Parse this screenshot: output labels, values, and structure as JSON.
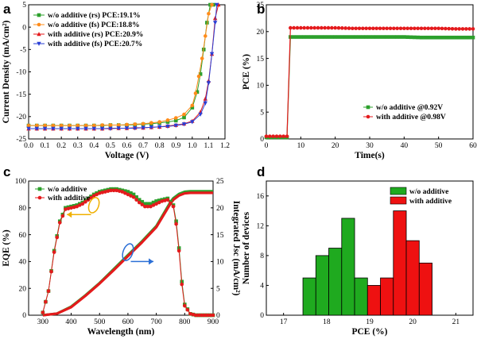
{
  "chart_data": [
    {
      "panel": "a",
      "type": "line",
      "xlabel": "Voltage (V)",
      "ylabel": "Current Density (mA/cm²)",
      "xlim": [
        0.0,
        1.2
      ],
      "ylim": [
        -25,
        5
      ],
      "xticks": [
        0.0,
        0.1,
        0.2,
        0.3,
        0.4,
        0.5,
        0.6,
        0.7,
        0.8,
        0.9,
        1.0,
        1.1,
        1.2
      ],
      "yticks": [
        5,
        0,
        -5,
        -10,
        -15,
        -20,
        -25
      ],
      "legend": "top-left",
      "series": [
        {
          "name": "w/o additive (rs) PCE:19.1%",
          "color": "#2ca02c",
          "marker": "square",
          "x": [
            0.0,
            0.05,
            0.1,
            0.15,
            0.2,
            0.25,
            0.3,
            0.35,
            0.4,
            0.45,
            0.5,
            0.55,
            0.6,
            0.65,
            0.7,
            0.75,
            0.8,
            0.85,
            0.9,
            0.95,
            1.0,
            1.03,
            1.05,
            1.07,
            1.09,
            1.11,
            1.13
          ],
          "y": [
            -22.0,
            -22.0,
            -22.0,
            -22.0,
            -22.0,
            -22.0,
            -22.0,
            -22.0,
            -22.0,
            -22.0,
            -21.9,
            -21.9,
            -21.9,
            -21.8,
            -21.7,
            -21.6,
            -21.4,
            -21.2,
            -20.9,
            -20.2,
            -18.0,
            -14.5,
            -10.5,
            -5.0,
            1.0,
            5.0,
            5.0
          ]
        },
        {
          "name": "w/o additive (fs) PCE:18.8%",
          "color": "#ff8c1a",
          "marker": "circle",
          "x": [
            0.0,
            0.05,
            0.1,
            0.15,
            0.2,
            0.25,
            0.3,
            0.35,
            0.4,
            0.45,
            0.5,
            0.55,
            0.6,
            0.65,
            0.7,
            0.75,
            0.8,
            0.85,
            0.9,
            0.95,
            1.0,
            1.02,
            1.04,
            1.06,
            1.08,
            1.1,
            1.12
          ],
          "y": [
            -22.0,
            -22.0,
            -22.0,
            -22.0,
            -22.0,
            -22.0,
            -22.0,
            -22.0,
            -22.0,
            -21.9,
            -21.9,
            -21.9,
            -21.8,
            -21.7,
            -21.6,
            -21.4,
            -21.2,
            -20.8,
            -20.3,
            -19.5,
            -17.5,
            -14.8,
            -11.0,
            -7.0,
            -2.0,
            3.0,
            5.0
          ]
        },
        {
          "name": "with additive (rs) PCE:20.9%",
          "color": "#e41a1c",
          "marker": "triangle-up",
          "x": [
            0.0,
            0.05,
            0.1,
            0.15,
            0.2,
            0.25,
            0.3,
            0.35,
            0.4,
            0.45,
            0.5,
            0.55,
            0.6,
            0.65,
            0.7,
            0.75,
            0.8,
            0.85,
            0.9,
            0.95,
            1.0,
            1.05,
            1.08,
            1.1,
            1.12,
            1.14,
            1.16
          ],
          "y": [
            -22.7,
            -22.7,
            -22.7,
            -22.7,
            -22.7,
            -22.7,
            -22.7,
            -22.7,
            -22.7,
            -22.7,
            -22.6,
            -22.6,
            -22.6,
            -22.5,
            -22.5,
            -22.4,
            -22.3,
            -22.1,
            -21.9,
            -21.6,
            -21.0,
            -19.0,
            -16.0,
            -12.0,
            -6.0,
            2.0,
            5.0
          ]
        },
        {
          "name": "with additive (fs) PCE:20.7%",
          "color": "#2a3fd6",
          "marker": "triangle-down",
          "x": [
            0.0,
            0.05,
            0.1,
            0.15,
            0.2,
            0.25,
            0.3,
            0.35,
            0.4,
            0.45,
            0.5,
            0.55,
            0.6,
            0.65,
            0.7,
            0.75,
            0.8,
            0.85,
            0.9,
            0.95,
            1.0,
            1.05,
            1.08,
            1.1,
            1.12,
            1.14,
            1.15
          ],
          "y": [
            -22.7,
            -22.7,
            -22.7,
            -22.7,
            -22.7,
            -22.7,
            -22.7,
            -22.7,
            -22.7,
            -22.7,
            -22.7,
            -22.6,
            -22.6,
            -22.6,
            -22.5,
            -22.4,
            -22.3,
            -22.2,
            -22.0,
            -21.7,
            -21.2,
            -19.5,
            -17.0,
            -12.5,
            -6.0,
            1.0,
            5.0
          ]
        }
      ]
    },
    {
      "panel": "b",
      "type": "line",
      "xlabel": "Time(s)",
      "ylabel": "PCE (%)",
      "xlim": [
        0,
        60
      ],
      "ylim": [
        0,
        25
      ],
      "xticks": [
        0,
        10,
        20,
        30,
        40,
        50,
        60
      ],
      "yticks": [
        0,
        5,
        10,
        15,
        20,
        25
      ],
      "legend": "bottom-right",
      "series": [
        {
          "name": "w/o additive @0.92V",
          "color": "#2ca02c",
          "marker": "square",
          "x": [
            0,
            1,
            2,
            3,
            4,
            5,
            6,
            7,
            8,
            10,
            15,
            20,
            25,
            30,
            35,
            40,
            45,
            50,
            55,
            60
          ],
          "y": [
            0.3,
            0.3,
            0.3,
            0.3,
            0.3,
            0.3,
            0.3,
            19.0,
            19.0,
            19.0,
            19.0,
            19.0,
            19.0,
            19.0,
            19.0,
            19.0,
            18.9,
            18.9,
            18.9,
            18.9
          ]
        },
        {
          "name": "with additive @0.98V",
          "color": "#e41a1c",
          "marker": "circle",
          "x": [
            0,
            1,
            2,
            3,
            4,
            5,
            6,
            7,
            8,
            10,
            15,
            20,
            25,
            30,
            35,
            40,
            45,
            50,
            55,
            60
          ],
          "y": [
            0.5,
            0.5,
            0.5,
            0.5,
            0.5,
            0.5,
            0.5,
            20.7,
            20.7,
            20.7,
            20.7,
            20.7,
            20.6,
            20.6,
            20.6,
            20.6,
            20.6,
            20.6,
            20.5,
            20.5
          ]
        }
      ]
    },
    {
      "panel": "c",
      "type": "line",
      "xlabel": "Wavelength (nm)",
      "ylabel": "EQE (%)",
      "y2label": "Integrated Jsc (mA/cm²)",
      "xlim": [
        250,
        900
      ],
      "ylim": [
        0,
        100
      ],
      "y2lim": [
        0,
        25
      ],
      "xticks": [
        300,
        400,
        500,
        600,
        700,
        800,
        900
      ],
      "yticks": [
        0,
        20,
        40,
        60,
        80,
        100
      ],
      "y2ticks": [
        0,
        5,
        10,
        15,
        20,
        25
      ],
      "legend": "top-left",
      "series": [
        {
          "name": "w/o additive",
          "color": "#2ca02c",
          "marker": "square",
          "axis": "left",
          "x": [
            300,
            320,
            340,
            360,
            380,
            400,
            420,
            440,
            460,
            480,
            500,
            520,
            540,
            560,
            580,
            600,
            620,
            640,
            660,
            680,
            700,
            720,
            740,
            760,
            770,
            780,
            790,
            800,
            820,
            840,
            860,
            880,
            900
          ],
          "y": [
            2,
            18,
            48,
            70,
            80,
            81,
            82,
            84,
            87,
            90,
            92,
            93,
            94,
            94,
            93,
            92,
            90,
            86,
            83,
            83,
            85,
            86,
            87,
            82,
            70,
            50,
            25,
            8,
            1,
            0,
            0,
            0,
            0
          ]
        },
        {
          "name": "with additive",
          "color": "#e41a1c",
          "marker": "circle",
          "axis": "left",
          "x": [
            300,
            320,
            340,
            360,
            380,
            400,
            420,
            440,
            460,
            480,
            500,
            520,
            540,
            560,
            580,
            600,
            620,
            640,
            660,
            680,
            700,
            720,
            740,
            760,
            770,
            780,
            790,
            800,
            820,
            840,
            860,
            880,
            900
          ],
          "y": [
            2,
            18,
            47,
            69,
            79,
            80,
            81,
            83,
            86,
            89,
            91,
            92,
            93,
            93,
            92,
            90,
            88,
            84,
            81,
            81,
            83,
            85,
            86,
            81,
            68,
            48,
            23,
            7,
            1,
            0,
            0,
            0,
            0
          ]
        },
        {
          "name": "Integrated Jsc (w/o additive)",
          "color": "#2ca02c",
          "axis": "right",
          "x": [
            300,
            350,
            400,
            450,
            500,
            550,
            600,
            650,
            700,
            750,
            760,
            780,
            800,
            820,
            850,
            900
          ],
          "y": [
            0,
            0.3,
            1.6,
            3.7,
            6.0,
            8.6,
            11.2,
            13.8,
            16.6,
            21.1,
            21.8,
            22.6,
            23.0,
            23.1,
            23.1,
            23.1
          ]
        },
        {
          "name": "Integrated Jsc (with additive)",
          "color": "#e41a1c",
          "axis": "right",
          "x": [
            300,
            350,
            400,
            450,
            500,
            550,
            600,
            650,
            700,
            750,
            760,
            780,
            800,
            820,
            850,
            900
          ],
          "y": [
            0,
            0.3,
            1.5,
            3.6,
            5.9,
            8.4,
            11.0,
            13.6,
            16.4,
            20.8,
            21.5,
            22.3,
            22.7,
            22.8,
            22.8,
            22.8
          ]
        }
      ]
    },
    {
      "panel": "d",
      "type": "bar",
      "xlabel": "PCE (%)",
      "ylabel": "Number of devices",
      "xlim": [
        16.6,
        21.4
      ],
      "ylim": [
        0,
        18
      ],
      "xticks": [
        17,
        18,
        19,
        20,
        21
      ],
      "yticks": [
        0,
        4,
        8,
        12,
        16
      ],
      "legend": "top-right",
      "bin_width": 0.3,
      "series": [
        {
          "name": "w/o additive",
          "color": "#1faa1f",
          "x": [
            17.6,
            17.9,
            18.2,
            18.5,
            18.8
          ],
          "values": [
            5,
            8,
            9,
            13,
            5
          ]
        },
        {
          "name": "with additive",
          "color": "#ee1111",
          "x": [
            19.1,
            19.4,
            19.7,
            20.0,
            20.3,
            20.6
          ],
          "values": [
            4,
            5,
            14,
            10,
            7,
            0
          ]
        }
      ]
    }
  ],
  "panels": {
    "a": {
      "letter": "a"
    },
    "b": {
      "letter": "b"
    },
    "c": {
      "letter": "c"
    },
    "d": {
      "letter": "d"
    }
  }
}
